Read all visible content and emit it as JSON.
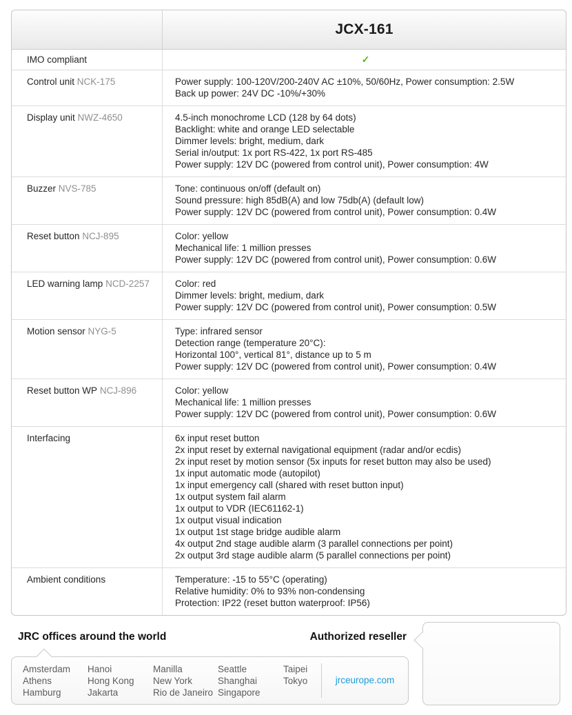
{
  "product": {
    "title": "JCX-161"
  },
  "icons": {
    "check": "✓"
  },
  "colors": {
    "check_green": "#5cb41e",
    "link_blue": "#1b9cd8",
    "model_gray": "#8f8f8f"
  },
  "spec_table": {
    "rows": [
      {
        "label": "IMO compliant",
        "model": "",
        "check": true,
        "lines": []
      },
      {
        "label": "Control unit",
        "model": "NCK-175",
        "check": false,
        "lines": [
          "Power supply: 100-120V/200-240V AC ±10%, 50/60Hz, Power consumption: 2.5W",
          "Back up power: 24V DC -10%/+30%"
        ]
      },
      {
        "label": "Display unit",
        "model": "NWZ-4650",
        "check": false,
        "lines": [
          "4.5-inch monochrome LCD (128 by 64 dots)",
          "Backlight: white and orange LED selectable",
          "Dimmer levels: bright, medium, dark",
          "Serial in/output: 1x port RS-422, 1x port RS-485",
          "Power supply: 12V DC (powered from control unit), Power consumption: 4W"
        ]
      },
      {
        "label": "Buzzer",
        "model": "NVS-785",
        "check": false,
        "lines": [
          "Tone: continuous on/off (default on)",
          "Sound pressure: high 85dB(A) and low 75db(A) (default low)",
          "Power supply: 12V DC (powered from control unit), Power consumption: 0.4W"
        ]
      },
      {
        "label": "Reset button",
        "model": "NCJ-895",
        "check": false,
        "lines": [
          "Color: yellow",
          "Mechanical life: 1 million presses",
          "Power supply: 12V DC (powered from control unit), Power consumption: 0.6W"
        ]
      },
      {
        "label": "LED warning lamp",
        "model": "NCD-2257",
        "check": false,
        "lines": [
          "Color: red",
          "Dimmer levels: bright, medium, dark",
          "Power supply: 12V DC (powered from control unit), Power consumption: 0.5W"
        ]
      },
      {
        "label": "Motion sensor",
        "model": "NYG-5",
        "check": false,
        "lines": [
          "Type: infrared sensor",
          "Detection range (temperature 20°C):",
          "Horizontal 100°, vertical 81°, distance up to 5 m",
          "Power supply: 12V DC (powered from control unit), Power consumption: 0.4W"
        ]
      },
      {
        "label": "Reset button WP",
        "model": "NCJ-896",
        "check": false,
        "lines": [
          "Color: yellow",
          "Mechanical life: 1 million presses",
          "Power supply: 12V DC (powered from control unit), Power consumption: 0.6W"
        ]
      },
      {
        "label": "Interfacing",
        "model": "",
        "check": false,
        "lines": [
          "6x input reset button",
          "2x input reset by external navigational equipment (radar and/or ecdis)",
          "2x input reset by motion sensor (5x inputs for reset button may also be used)",
          "1x input automatic mode (autopilot)",
          "1x input emergency call (shared with reset button input)",
          "1x output system fail alarm",
          "1x output to VDR (IEC61162-1)",
          "1x output visual indication",
          "1x output 1st stage bridge audible alarm",
          "4x output 2nd stage audible alarm (3 parallel connections per point)",
          "2x output 3rd stage audible alarm (5 parallel connections per point)"
        ]
      },
      {
        "label": "Ambient conditions",
        "model": "",
        "check": false,
        "lines": [
          "Temperature: -15 to 55°C (operating)",
          "Relative humidity: 0% to 93% non-condensing",
          "Protection: IP22 (reset button waterproof: IP56)"
        ]
      }
    ]
  },
  "footer": {
    "offices_title": "JRC offices around the world",
    "reseller_title": "Authorized reseller",
    "office_columns": [
      [
        "Amsterdam",
        "Athens",
        "Hamburg"
      ],
      [
        "Hanoi",
        "Hong Kong",
        "Jakarta"
      ],
      [
        "Manilla",
        "New York",
        "Rio de Janeiro"
      ],
      [
        "Seattle",
        "Shanghai",
        "Singapore"
      ],
      [
        "Taipei",
        "Tokyo"
      ]
    ],
    "website": "jrceurope.com"
  }
}
